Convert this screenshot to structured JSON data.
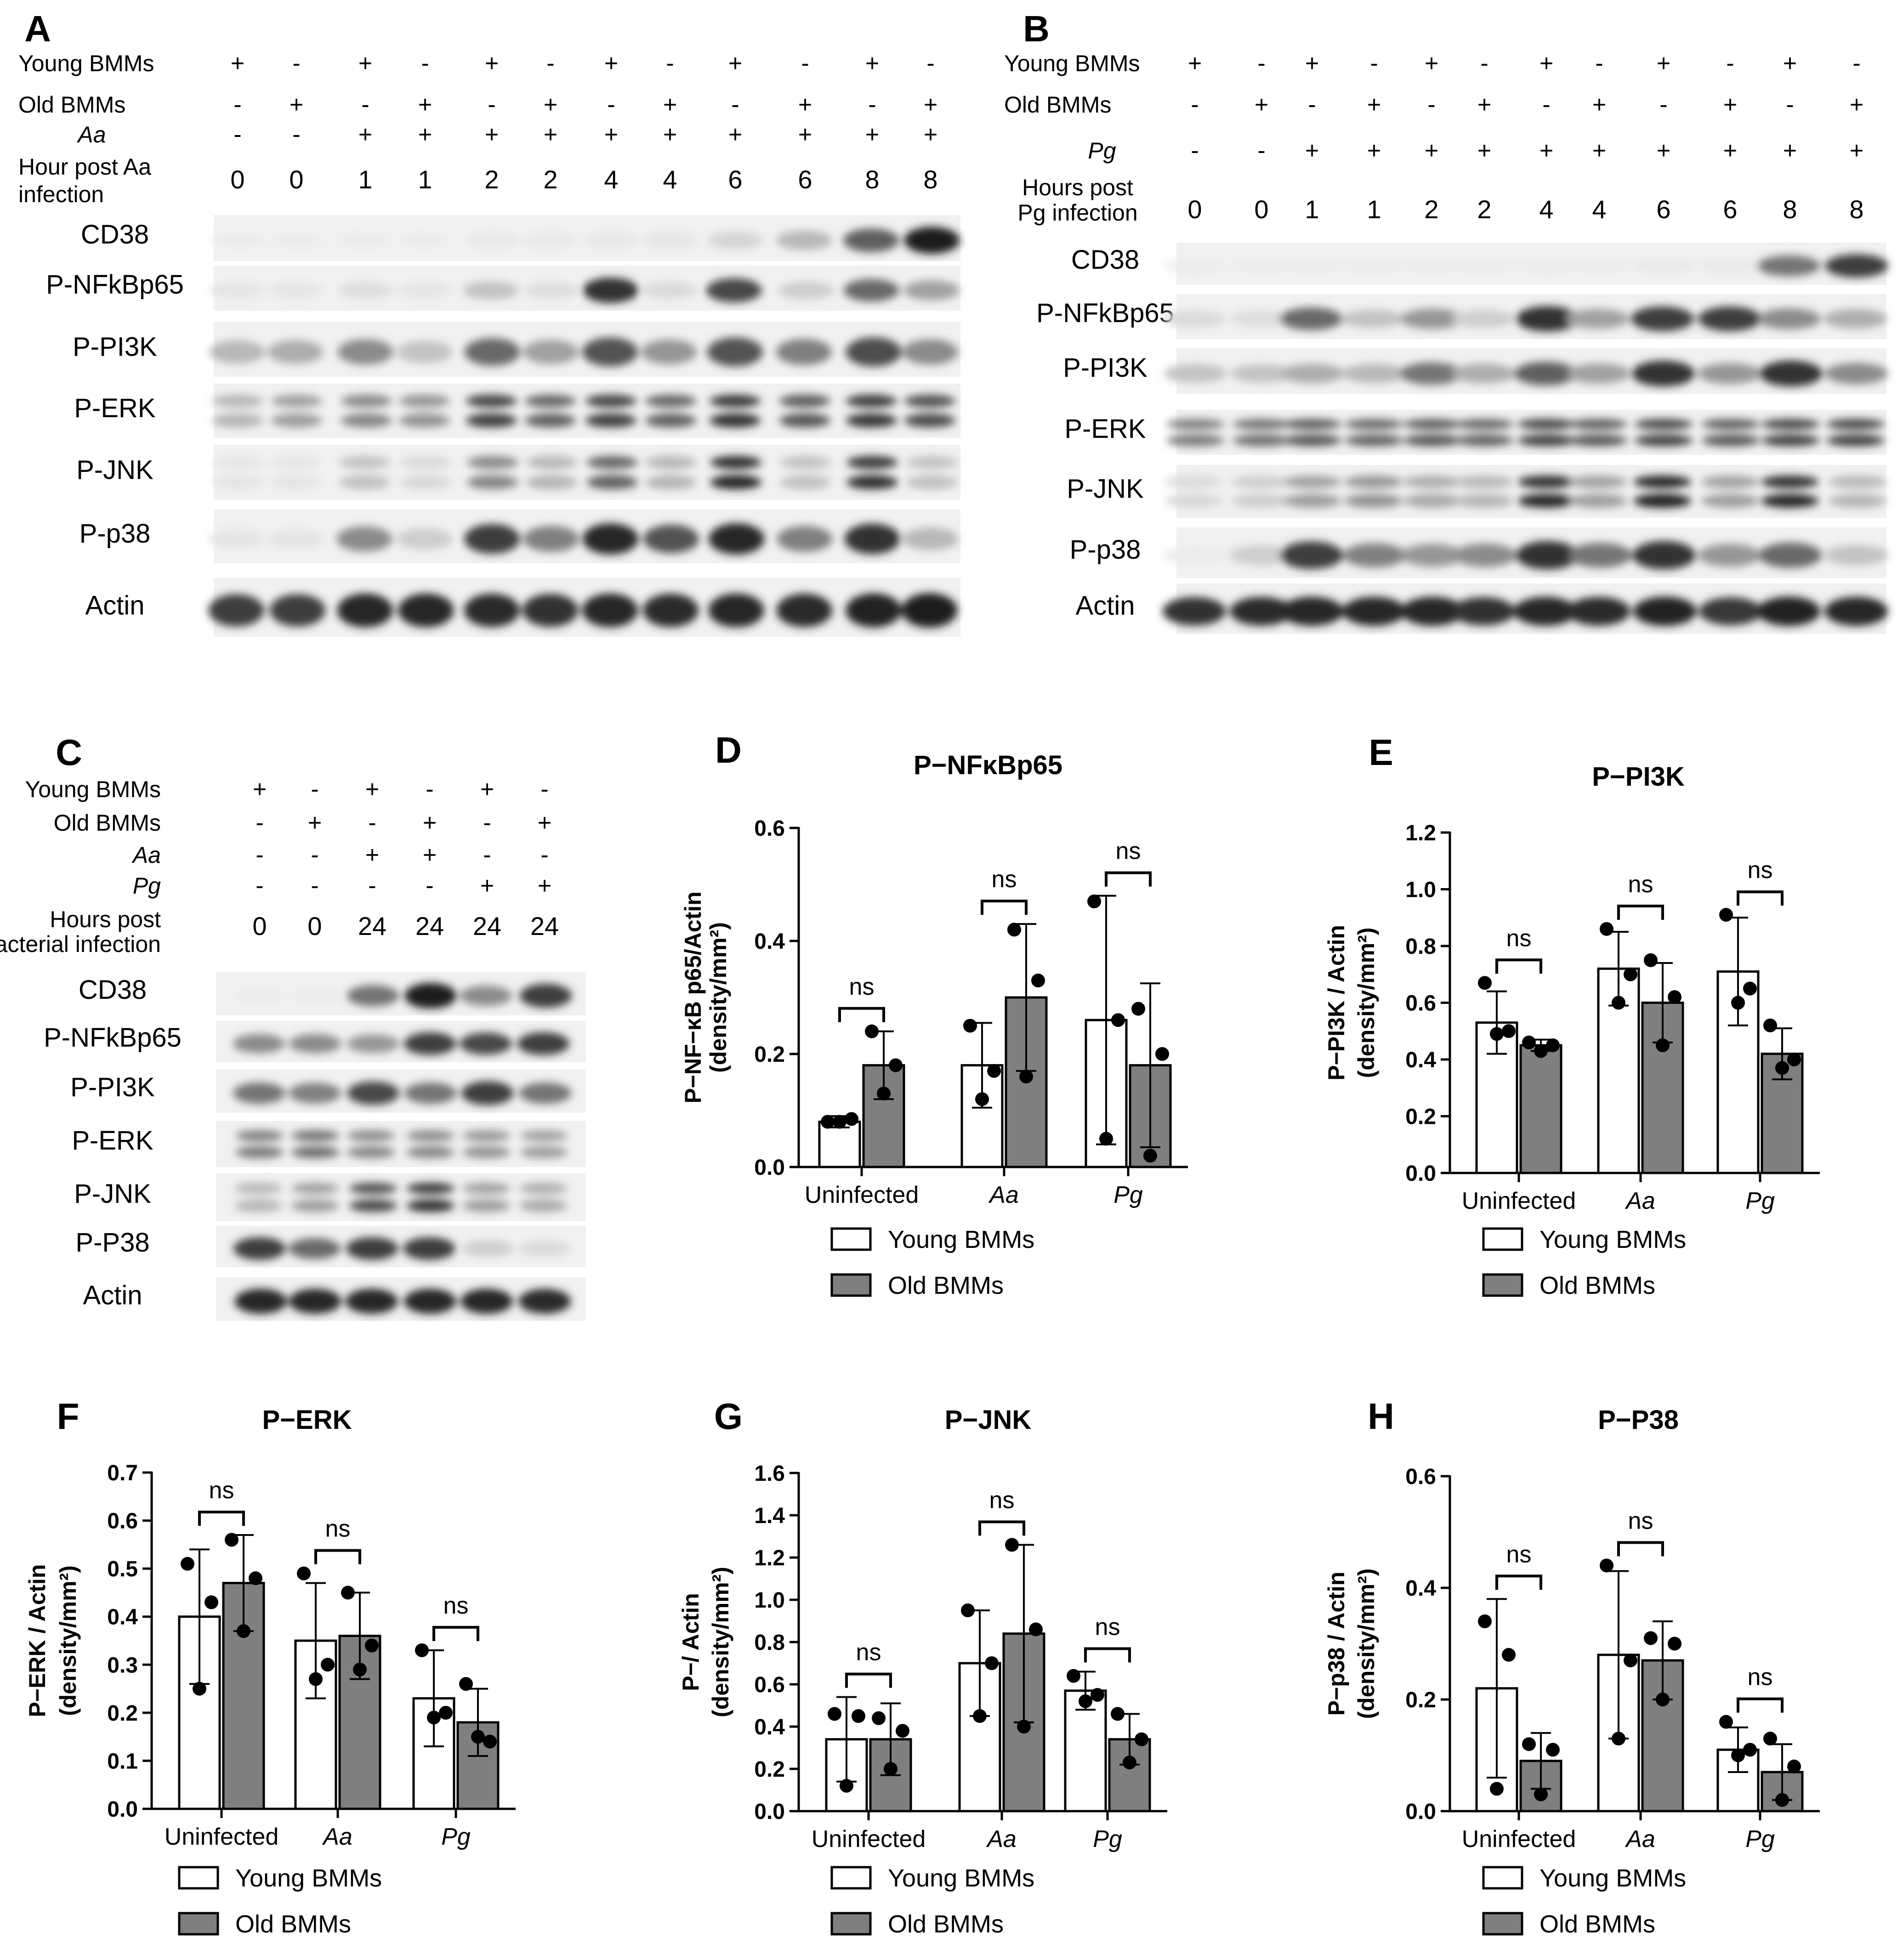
{
  "blots": [
    {
      "letter": "A",
      "conditions": [
        {
          "label": "Young BMMs",
          "signs": [
            "+",
            "-",
            "+",
            "-",
            "+",
            "-",
            "+",
            "-",
            "+",
            "-",
            "+",
            "-"
          ]
        },
        {
          "label": "Old BMMs",
          "signs": [
            "-",
            "+",
            "-",
            "+",
            "-",
            "+",
            "-",
            "+",
            "-",
            "+",
            "-",
            "+"
          ]
        },
        {
          "label": "Aa",
          "italic": true,
          "signs": [
            "-",
            "-",
            "+",
            "+",
            "+",
            "+",
            "+",
            "+",
            "+",
            "+",
            "+",
            "+"
          ]
        }
      ],
      "hour_label": [
        "Hour post Aa",
        "infection"
      ],
      "hours": [
        "0",
        "0",
        "1",
        "1",
        "2",
        "2",
        "4",
        "4",
        "6",
        "6",
        "8",
        "8"
      ],
      "bands": [
        "CD38",
        "P-NFkBp65",
        "P-PI3K",
        "P-ERK",
        "P-JNK",
        "P-p38",
        "Actin"
      ]
    },
    {
      "letter": "B",
      "conditions": [
        {
          "label": "Young BMMs",
          "signs": [
            "+",
            "-",
            "+",
            "-",
            "+",
            "-",
            "+",
            "-",
            "+",
            "-",
            "+",
            "-"
          ]
        },
        {
          "label": "Old BMMs",
          "signs": [
            "-",
            "+",
            "-",
            "+",
            "-",
            "+",
            "-",
            "+",
            "-",
            "+",
            "-",
            "+"
          ]
        },
        {
          "label": "Pg",
          "italic": true,
          "signs": [
            "-",
            "-",
            "+",
            "+",
            "+",
            "+",
            "+",
            "+",
            "+",
            "+",
            "+",
            "+"
          ]
        }
      ],
      "hour_label": [
        "Hours post",
        "Pg infection"
      ],
      "hours": [
        "0",
        "0",
        "1",
        "1",
        "2",
        "2",
        "4",
        "4",
        "6",
        "6",
        "8",
        "8"
      ],
      "bands": [
        "CD38",
        "P-NFkBp65",
        "P-PI3K",
        "P-ERK",
        "P-JNK",
        "P-p38",
        "Actin"
      ]
    },
    {
      "letter": "C",
      "conditions": [
        {
          "label": "Young BMMs",
          "signs": [
            "+",
            "-",
            "+",
            "-",
            "+",
            "-"
          ]
        },
        {
          "label": "Old BMMs",
          "signs": [
            "-",
            "+",
            "-",
            "+",
            "-",
            "+"
          ]
        },
        {
          "label": "Aa",
          "italic": true,
          "signs": [
            "-",
            "-",
            "+",
            "+",
            "-",
            "-"
          ]
        },
        {
          "label": "Pg",
          "italic": true,
          "signs": [
            "-",
            "-",
            "-",
            "-",
            "+",
            "+"
          ]
        }
      ],
      "hour_label": [
        "Hours post",
        "bacterial infection"
      ],
      "hours": [
        "0",
        "0",
        "24",
        "24",
        "24",
        "24"
      ],
      "bands": [
        "CD38",
        "P-NFkBp65",
        "P-PI3K",
        "P-ERK",
        "P-JNK",
        "P-P38",
        "Actin"
      ]
    }
  ],
  "legend": {
    "young": "Young BMMs",
    "old": "Old BMMs"
  },
  "colors": {
    "young": "#ffffff",
    "old": "#7f7f7f",
    "ink": "#000000"
  },
  "chart_data": [
    {
      "letter": "D",
      "type": "bar",
      "title": "P−NFκBp65",
      "ylabel": [
        "P−NF−κB p65/Actin",
        "(density/mm²)"
      ],
      "categories": [
        "Uninfected",
        "Aa",
        "Pg"
      ],
      "italic_categories": [
        false,
        true,
        true
      ],
      "ylim": [
        0,
        0.6
      ],
      "yticks": [
        "0.0",
        "0.2",
        "0.4",
        "0.6"
      ],
      "series": [
        {
          "name": "Young BMMs",
          "values": [
            0.08,
            0.18,
            0.26
          ],
          "error": [
            0.01,
            0.075,
            0.22
          ],
          "points": [
            [
              0.08,
              0.08,
              0.085
            ],
            [
              0.25,
              0.12,
              0.17
            ],
            [
              0.47,
              0.05,
              0.26
            ]
          ]
        },
        {
          "name": "Old BMMs",
          "values": [
            0.18,
            0.3,
            0.18
          ],
          "error": [
            0.06,
            0.13,
            0.145
          ],
          "points": [
            [
              0.24,
              0.13,
              0.18
            ],
            [
              0.42,
              0.16,
              0.33
            ],
            [
              0.28,
              0.02,
              0.2
            ]
          ]
        }
      ],
      "significance": [
        "ns",
        "ns",
        "ns"
      ]
    },
    {
      "letter": "E",
      "type": "bar",
      "title": "P−PI3K",
      "ylabel": [
        "P−PI3K / Actin",
        "(density/mm²)"
      ],
      "categories": [
        "Uninfected",
        "Aa",
        "Pg"
      ],
      "italic_categories": [
        false,
        true,
        true
      ],
      "ylim": [
        0,
        1.2
      ],
      "yticks": [
        "0.0",
        "0.2",
        "0.4",
        "0.6",
        "0.8",
        "1.0",
        "1.2"
      ],
      "series": [
        {
          "name": "Young BMMs",
          "values": [
            0.53,
            0.72,
            0.71
          ],
          "error": [
            0.11,
            0.13,
            0.19
          ],
          "points": [
            [
              0.67,
              0.49,
              0.5
            ],
            [
              0.86,
              0.6,
              0.7
            ],
            [
              0.91,
              0.6,
              0.65
            ]
          ]
        },
        {
          "name": "Old BMMs",
          "values": [
            0.45,
            0.6,
            0.42
          ],
          "error": [
            0.02,
            0.14,
            0.09
          ],
          "points": [
            [
              0.46,
              0.43,
              0.45
            ],
            [
              0.75,
              0.45,
              0.62
            ],
            [
              0.52,
              0.37,
              0.4
            ]
          ]
        }
      ],
      "significance": [
        "ns",
        "ns",
        "ns"
      ]
    },
    {
      "letter": "F",
      "type": "bar",
      "title": "P−ERK",
      "ylabel": [
        "P−ERK / Actin",
        "(density/mm²)"
      ],
      "categories": [
        "Uninfected",
        "Aa",
        "Pg"
      ],
      "italic_categories": [
        false,
        true,
        true
      ],
      "ylim": [
        0,
        0.7
      ],
      "yticks": [
        "0.0",
        "0.1",
        "0.2",
        "0.3",
        "0.4",
        "0.5",
        "0.6",
        "0.7"
      ],
      "series": [
        {
          "name": "Young BMMs",
          "values": [
            0.4,
            0.35,
            0.23
          ],
          "error": [
            0.14,
            0.12,
            0.1
          ],
          "points": [
            [
              0.51,
              0.25,
              0.43
            ],
            [
              0.49,
              0.27,
              0.3
            ],
            [
              0.33,
              0.19,
              0.2
            ]
          ]
        },
        {
          "name": "Old BMMs",
          "values": [
            0.47,
            0.36,
            0.18
          ],
          "error": [
            0.1,
            0.09,
            0.07
          ],
          "points": [
            [
              0.56,
              0.37,
              0.48
            ],
            [
              0.45,
              0.29,
              0.34
            ],
            [
              0.26,
              0.15,
              0.14
            ]
          ]
        }
      ],
      "significance": [
        "ns",
        "ns",
        "ns"
      ]
    },
    {
      "letter": "G",
      "type": "bar",
      "title": "P−JNK",
      "ylabel": [
        "P−/ Actin",
        "(density/mm²)"
      ],
      "categories": [
        "Uninfected",
        "Aa",
        "Pg"
      ],
      "italic_categories": [
        false,
        true,
        true
      ],
      "ylim": [
        0,
        1.6
      ],
      "yticks": [
        "0.0",
        "0.2",
        "0.4",
        "0.6",
        "0.8",
        "1.0",
        "1.2",
        "1.4",
        "1.6"
      ],
      "series": [
        {
          "name": "Young BMMs",
          "values": [
            0.34,
            0.7,
            0.57
          ],
          "error": [
            0.2,
            0.25,
            0.09
          ],
          "points": [
            [
              0.46,
              0.12,
              0.45
            ],
            [
              0.95,
              0.45,
              0.7
            ],
            [
              0.64,
              0.52,
              0.55
            ]
          ]
        },
        {
          "name": "Old BMMs",
          "values": [
            0.34,
            0.84,
            0.34
          ],
          "error": [
            0.17,
            0.42,
            0.12
          ],
          "points": [
            [
              0.44,
              0.2,
              0.38
            ],
            [
              1.26,
              0.4,
              0.86
            ],
            [
              0.46,
              0.23,
              0.34
            ]
          ]
        }
      ],
      "significance": [
        "ns",
        "ns",
        "ns"
      ]
    },
    {
      "letter": "H",
      "type": "bar",
      "title": "P−P38",
      "ylabel": [
        "P−p38 / Actin",
        "(density/mm²)"
      ],
      "categories": [
        "Uninfected",
        "Aa",
        "Pg"
      ],
      "italic_categories": [
        false,
        true,
        true
      ],
      "ylim": [
        0,
        0.6
      ],
      "yticks": [
        "0.0",
        "0.2",
        "0.4",
        "0.6"
      ],
      "series": [
        {
          "name": "Young BMMs",
          "values": [
            0.22,
            0.28,
            0.11
          ],
          "error": [
            0.16,
            0.15,
            0.04
          ],
          "points": [
            [
              0.34,
              0.04,
              0.28
            ],
            [
              0.44,
              0.13,
              0.27
            ],
            [
              0.16,
              0.1,
              0.11
            ]
          ]
        },
        {
          "name": "Old BMMs",
          "values": [
            0.09,
            0.27,
            0.07
          ],
          "error": [
            0.05,
            0.07,
            0.05
          ],
          "points": [
            [
              0.12,
              0.03,
              0.11
            ],
            [
              0.31,
              0.2,
              0.3
            ],
            [
              0.13,
              0.02,
              0.08
            ]
          ]
        }
      ],
      "significance": [
        "ns",
        "ns",
        "ns"
      ]
    }
  ]
}
